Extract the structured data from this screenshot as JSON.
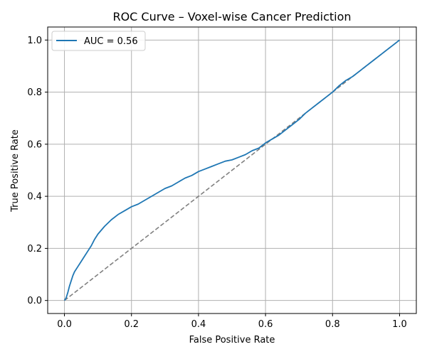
{
  "chart_data": {
    "type": "line",
    "title": "ROC Curve – Voxel-wise Cancer Prediction",
    "xlabel": "False Positive Rate",
    "ylabel": "True Positive Rate",
    "xlim": [
      -0.05,
      1.05
    ],
    "ylim": [
      -0.05,
      1.05
    ],
    "xticks": [
      0.0,
      0.2,
      0.4,
      0.6,
      0.8,
      1.0
    ],
    "yticks": [
      0.0,
      0.2,
      0.4,
      0.6,
      0.8,
      1.0
    ],
    "xtick_labels": [
      "0.0",
      "0.2",
      "0.4",
      "0.6",
      "0.8",
      "1.0"
    ],
    "ytick_labels": [
      "0.0",
      "0.2",
      "0.4",
      "0.6",
      "0.8",
      "1.0"
    ],
    "grid": true,
    "legend_position": "upper-left",
    "series": [
      {
        "name": "AUC = 0.56",
        "color": "#1f77b4",
        "style": "solid",
        "x": [
          0.0,
          0.005,
          0.01,
          0.015,
          0.02,
          0.025,
          0.03,
          0.04,
          0.05,
          0.06,
          0.07,
          0.08,
          0.09,
          0.1,
          0.12,
          0.14,
          0.16,
          0.18,
          0.2,
          0.22,
          0.24,
          0.26,
          0.28,
          0.3,
          0.32,
          0.34,
          0.36,
          0.38,
          0.4,
          0.42,
          0.44,
          0.46,
          0.48,
          0.5,
          0.52,
          0.54,
          0.56,
          0.58,
          0.6,
          0.62,
          0.64,
          0.66,
          0.68,
          0.7,
          0.72,
          0.74,
          0.76,
          0.78,
          0.8,
          0.82,
          0.84,
          0.86,
          0.88,
          0.9,
          0.92,
          0.94,
          0.96,
          0.98,
          1.0
        ],
        "y": [
          0.0,
          0.01,
          0.03,
          0.055,
          0.075,
          0.095,
          0.11,
          0.13,
          0.15,
          0.17,
          0.19,
          0.21,
          0.235,
          0.255,
          0.285,
          0.31,
          0.33,
          0.345,
          0.36,
          0.37,
          0.385,
          0.4,
          0.415,
          0.43,
          0.44,
          0.455,
          0.47,
          0.48,
          0.495,
          0.505,
          0.515,
          0.525,
          0.535,
          0.54,
          0.55,
          0.56,
          0.575,
          0.585,
          0.605,
          0.62,
          0.635,
          0.655,
          0.675,
          0.695,
          0.72,
          0.74,
          0.76,
          0.78,
          0.8,
          0.825,
          0.845,
          0.86,
          0.88,
          0.9,
          0.92,
          0.94,
          0.96,
          0.98,
          1.0
        ]
      },
      {
        "color": "#808080",
        "style": "dashed",
        "x": [
          0.0,
          1.0
        ],
        "y": [
          0.0,
          1.0
        ]
      }
    ]
  }
}
